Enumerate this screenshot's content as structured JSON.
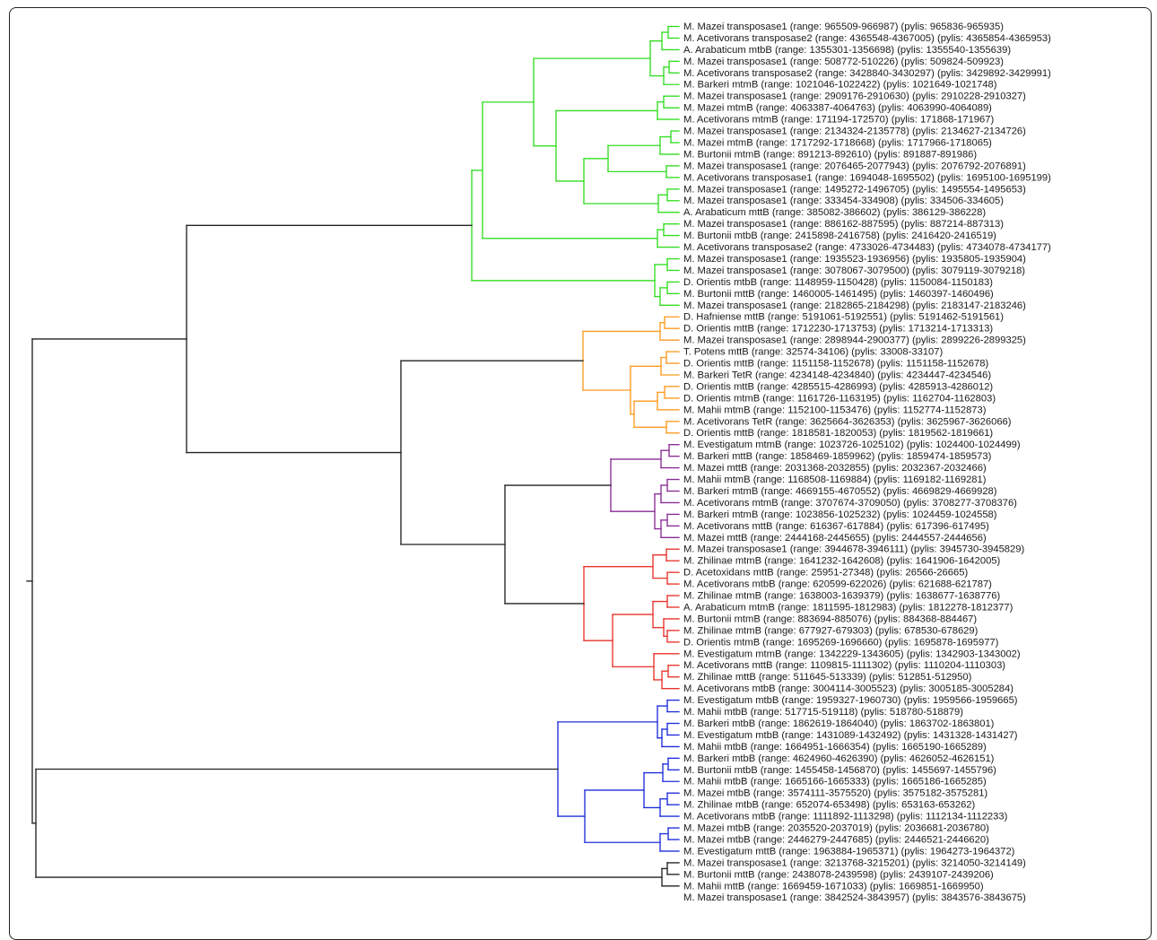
{
  "tree": {
    "colors": {
      "default": "#222222",
      "green": "#33dd22",
      "orange": "#ff9a1f",
      "purple": "#8a2b96",
      "red": "#e8332b",
      "blue": "#1f2ddb"
    },
    "leaves": [
      "M. Mazei transposase1 (range: 965509-966987) (pylis: 965836-965935)",
      "M. Acetivorans transposase2 (range: 4365548-4367005) (pylis: 4365854-4365953)",
      "A. Arabaticum mtbB (range: 1355301-1356698) (pylis: 1355540-1355639)",
      "M. Mazei transposase1 (range: 508772-510226) (pylis: 509824-509923)",
      "M. Acetivorans transposase2 (range: 3428840-3430297) (pylis: 3429892-3429991)",
      "M. Barkeri mtmB (range: 1021046-1022422) (pylis: 1021649-1021748)",
      "M. Mazei transposase1 (range: 2909176-2910630) (pylis: 2910228-2910327)",
      "M. Mazei mtmB (range: 4063387-4064763) (pylis: 4063990-4064089)",
      "M. Acetivorans mtmB (range: 171194-172570) (pylis: 171868-171967)",
      "M. Mazei transposase1 (range: 2134324-2135778) (pylis: 2134627-2134726)",
      "M. Mazei mtmB (range: 1717292-1718668) (pylis: 1717966-1718065)",
      "M. Burtonii mtmB (range: 891213-892610) (pylis: 891887-891986)",
      "M. Mazei transposase1 (range: 2076465-2077943) (pylis: 2076792-2076891)",
      "M. Acetivorans transposase1 (range: 1694048-1695502) (pylis: 1695100-1695199)",
      "M. Mazei transposase1 (range: 1495272-1496705) (pylis: 1495554-1495653)",
      "M. Mazei transposase1 (range: 333454-334908) (pylis: 334506-334605)",
      "A. Arabaticum mttB (range: 385082-386602) (pylis: 386129-386228)",
      "M. Mazei transposase1 (range: 886162-887595) (pylis: 887214-887313)",
      "M. Burtonii mtbB (range: 2415898-2416758) (pylis: 2416420-2416519)",
      "M. Acetivorans transposase2 (range: 4733026-4734483) (pylis: 4734078-4734177)",
      "M. Mazei transposase1 (range: 1935523-1936956) (pylis: 1935805-1935904)",
      "M. Mazei transposase1 (range: 3078067-3079500) (pylis: 3079119-3079218)",
      "D. Orientis mtbB (range: 1148959-1150428) (pylis: 1150084-1150183)",
      "M. Burtonii mttB (range: 1460005-1461495) (pylis: 1460397-1460496)",
      "M. Mazei transposase1 (range: 2182865-2184298) (pylis: 2183147-2183246)",
      "D. Hafniense mttB (range: 5191061-5192551) (pylis: 5191462-5191561)",
      "D. Orientis mttB (range: 1712230-1713753) (pylis: 1713214-1713313)",
      "M. Mazei transposase1 (range: 2898944-2900377) (pylis: 2899226-2899325)",
      "T. Potens mttB (range: 32574-34106) (pylis: 33008-33107)",
      "D. Orientis mttB (range: 1151158-1152678) (pylis: 1151158-1152678)",
      "M. Barkeri TetR (range: 4234148-4234840) (pylis: 4234447-4234546)",
      "D. Orientis mttB (range: 4285515-4286993) (pylis: 4285913-4286012)",
      "D. Orientis mtmB (range: 1161726-1163195) (pylis: 1162704-1162803)",
      "M. Mahii mtmB (range: 1152100-1153476) (pylis: 1152774-1152873)",
      "M. Acetivorans TetR (range: 3625664-3626353) (pylis: 3625967-3626066)",
      "D. Orientis mttB (range: 1818581-1820053) (pylis: 1819562-1819661)",
      "M. Evestigatum mtmB (range: 1023726-1025102) (pylis: 1024400-1024499)",
      "M. Barkeri mttB (range: 1858469-1859962) (pylis: 1859474-1859573)",
      "M. Mazei mttB (range: 2031368-2032855) (pylis: 2032367-2032466)",
      "M. Mahii mtmB (range: 1168508-1169884) (pylis: 1169182-1169281)",
      "M. Barkeri mtmB (range: 4669155-4670552) (pylis: 4669829-4669928)",
      "M. Acetivorans mtmB (range: 3707674-3709050) (pylis: 3708277-3708376)",
      "M. Barkeri mtmB (range: 1023856-1025232) (pylis: 1024459-1024558)",
      "M. Acetivorans mttB (range: 616367-617884) (pylis: 617396-617495)",
      "M. Mazei mttB (range: 2444168-2445655) (pylis: 2444557-2444656)",
      "M. Mazei transposase1 (range: 3944678-3946111) (pylis: 3945730-3945829)",
      "M. Zhilinae mtmB (range: 1641232-1642608) (pylis: 1641906-1642005)",
      "D. Acetoxidans mttB (range: 25951-27348) (pylis: 26566-26665)",
      "M. Acetivorans mtbB (range: 620599-622026) (pylis: 621688-621787)",
      "M. Zhilinae mtmB (range: 1638003-1639379) (pylis: 1638677-1638776)",
      "A. Arabaticum mtmB (range: 1811595-1812983) (pylis: 1812278-1812377)",
      "M. Burtonii mtmB (range: 883694-885076) (pylis: 884368-884467)",
      "M. Zhilinae mtmB (range: 677927-679303) (pylis: 678530-678629)",
      "D. Orientis mtmB (range: 1695269-1696660) (pylis: 1695878-1695977)",
      "M. Evestigatum mtmB (range: 1342229-1343605) (pylis: 1342903-1343002)",
      "M. Acetivorans mttB (range: 1109815-1111302) (pylis: 1110204-1110303)",
      "M. Zhilinae mttB (range: 511645-513339) (pylis: 512851-512950)",
      "M. Acetivorans mtbB (range: 3004114-3005523) (pylis: 3005185-3005284)",
      "M. Evestigatum mtbB (range: 1959327-1960730) (pylis: 1959566-1959665)",
      "M. Mahii mtbB (range: 517715-519118) (pylis: 518780-518879)",
      "M. Barkeri mtbB (range: 1862619-1864040) (pylis: 1863702-1863801)",
      "M. Evestigatum mtbB (range: 1431089-1432492) (pylis: 1431328-1431427)",
      "M. Mahii mtbB (range: 1664951-1666354) (pylis: 1665190-1665289)",
      "M. Barkeri mtbB (range: 4624960-4626390) (pylis: 4626052-4626151)",
      "M. Burtonii mtbB (range: 1455458-1456870) (pylis: 1455697-1455796)",
      "M. Mahii mtbB (range: 1665166-1665333) (pylis: 1665186-1665285)",
      "M. Mazei mtbB (range: 3574111-3575520) (pylis: 3575182-3575281)",
      "M. Zhilinae mtbB (range: 652074-653498) (pylis: 653163-653262)",
      "M. Acetivorans mtbB (range: 1111892-1113298) (pylis: 1112134-1112233)",
      "M. Mazei mtbB (range: 2035520-2037019) (pylis: 2036681-2036780)",
      "M. Mazei mtbB (range: 2446279-2447685) (pylis: 2446521-2446620)",
      "M. Evestigatum mttB (range: 1963884-1965371) (pylis: 1964273-1964372)",
      "M. Mazei transposase1 (range: 3213768-3215201) (pylis: 3214050-3214149)",
      "M. Burtonii mttB (range: 2438078-2439598) (pylis: 2439107-2439206)",
      "M. Mahii mttB (range: 1669459-1671033) (pylis: 1669851-1669950)",
      "M. Mazei transposase1 (range: 3842524-3843957) (pylis: 3843576-3843675)"
    ]
  }
}
